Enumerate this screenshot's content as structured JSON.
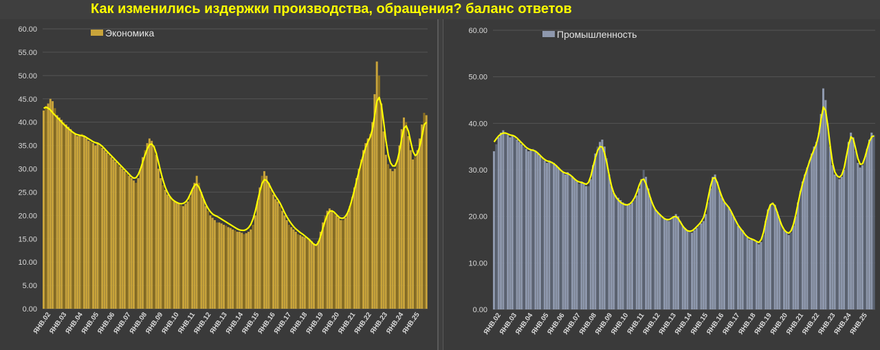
{
  "title": "Как изменились издержки производства, обращения? баланс ответов",
  "colors": {
    "background": "#3f3f3f",
    "grid": "#555555",
    "left_bar": "#c9a43a",
    "left_bar_dark": "#8a6f22",
    "right_bar": "#8e98ad",
    "right_bar_dark": "#5b6372",
    "trend_line": "#ffff00"
  },
  "chart_data": [
    {
      "type": "bar",
      "legend": "Экономика",
      "legend_position": "top-left",
      "grid": true,
      "ylim": [
        0,
        60
      ],
      "y_ticks": [
        "0.00",
        "5.00",
        "10.00",
        "15.00",
        "20.00",
        "25.00",
        "30.00",
        "35.00",
        "40.00",
        "45.00",
        "50.00",
        "55.00",
        "60.00"
      ],
      "x_ticks": [
        "ЯНВ.02",
        "ЯНВ.03",
        "ЯНВ.04",
        "ЯНВ.05",
        "ЯНВ.06",
        "ЯНВ.07",
        "ЯНВ.08",
        "ЯНВ.09",
        "ЯНВ.10",
        "ЯНВ.11",
        "ЯНВ.12",
        "ЯНВ.13",
        "ЯНВ.14",
        "ЯНВ.15",
        "ЯНВ.16",
        "ЯНВ.17",
        "ЯНВ.18",
        "ЯНВ.19",
        "ЯНВ.20",
        "ЯНВ.21",
        "ЯНВ.22",
        "ЯНВ.23",
        "ЯНВ.24",
        "ЯНВ.25"
      ],
      "series": [
        {
          "values": [
            42.5,
            43.5,
            44.0,
            45.0,
            44.5,
            43.0,
            41.5,
            41.0,
            40.5,
            40.0,
            39.5,
            39.0,
            38.5,
            38.0,
            37.5,
            37.0,
            37.2,
            37.5,
            37.0,
            36.5,
            36.0,
            35.8,
            35.5,
            35.0,
            35.5,
            35.0,
            34.5,
            34.0,
            33.5,
            33.0,
            32.5,
            32.0,
            31.5,
            31.0,
            30.5,
            30.0,
            29.5,
            29.0,
            28.5,
            28.0,
            27.5,
            27.0,
            28.0,
            30.0,
            32.5,
            34.0,
            35.5,
            36.5,
            36.0,
            35.0,
            33.0,
            30.0,
            28.0,
            26.5,
            25.5,
            24.5,
            24.0,
            23.5,
            23.0,
            22.8,
            22.5,
            22.2,
            22.0,
            22.5,
            23.0,
            24.0,
            25.5,
            27.0,
            28.5,
            27.0,
            25.0,
            23.5,
            22.0,
            21.0,
            20.0,
            19.5,
            19.0,
            18.5,
            18.5,
            18.3,
            18.0,
            17.8,
            17.5,
            17.3,
            17.0,
            16.8,
            16.5,
            16.5,
            16.3,
            16.0,
            16.2,
            16.5,
            17.0,
            18.0,
            20.0,
            23.0,
            26.0,
            28.5,
            29.5,
            28.5,
            27.0,
            25.5,
            24.5,
            23.5,
            23.0,
            22.0,
            21.0,
            20.0,
            19.0,
            18.0,
            17.5,
            17.0,
            16.5,
            16.0,
            15.8,
            15.5,
            15.3,
            15.0,
            14.8,
            14.5,
            14.0,
            13.5,
            14.5,
            16.5,
            18.5,
            20.0,
            21.0,
            21.5,
            21.0,
            20.5,
            20.0,
            19.5,
            19.0,
            19.0,
            19.5,
            20.5,
            22.0,
            24.0,
            26.0,
            28.0,
            30.0,
            32.0,
            34.0,
            35.5,
            36.5,
            37.5,
            40.0,
            46.0,
            53.0,
            50.0,
            44.0,
            38.0,
            33.0,
            31.0,
            30.0,
            29.5,
            30.0,
            32.0,
            35.0,
            38.5,
            41.0,
            40.0,
            37.0,
            34.0,
            32.0,
            32.5,
            34.0,
            36.5,
            39.5,
            42.0,
            41.5
          ]
        },
        {
          "name": "trend",
          "values": [
            43.0,
            43.2,
            43.0,
            42.6,
            42.0,
            41.5,
            41.0,
            40.5,
            40.0,
            39.5,
            39.0,
            38.6,
            38.2,
            37.8,
            37.5,
            37.3,
            37.2,
            37.1,
            37.0,
            36.7,
            36.4,
            36.1,
            35.8,
            35.6,
            35.5,
            35.2,
            34.8,
            34.3,
            33.8,
            33.3,
            32.8,
            32.3,
            31.8,
            31.3,
            30.8,
            30.3,
            29.8,
            29.3,
            28.8,
            28.3,
            28.0,
            28.1,
            28.8,
            30.0,
            31.5,
            33.0,
            34.3,
            35.2,
            35.3,
            34.7,
            33.3,
            31.3,
            29.3,
            27.5,
            26.0,
            24.9,
            24.1,
            23.5,
            23.1,
            22.8,
            22.6,
            22.5,
            22.6,
            22.9,
            23.5,
            24.5,
            25.6,
            26.5,
            26.7,
            26.0,
            24.8,
            23.5,
            22.4,
            21.5,
            20.8,
            20.3,
            20.0,
            19.8,
            19.5,
            19.2,
            18.9,
            18.6,
            18.3,
            18.0,
            17.7,
            17.4,
            17.1,
            16.9,
            16.8,
            16.8,
            17.0,
            17.4,
            18.1,
            19.3,
            21.0,
            23.1,
            25.2,
            26.9,
            27.7,
            27.5,
            26.8,
            25.8,
            24.9,
            24.1,
            23.4,
            22.6,
            21.6,
            20.6,
            19.7,
            18.9,
            18.2,
            17.6,
            17.1,
            16.7,
            16.3,
            16.0,
            15.6,
            15.2,
            14.8,
            14.3,
            13.8,
            13.6,
            14.2,
            15.6,
            17.3,
            18.9,
            20.2,
            20.9,
            21.0,
            20.7,
            20.2,
            19.7,
            19.4,
            19.4,
            19.8,
            20.6,
            21.9,
            23.6,
            25.5,
            27.5,
            29.4,
            31.3,
            33.1,
            34.6,
            35.8,
            36.8,
            38.5,
            41.5,
            44.5,
            45.3,
            43.5,
            40.0,
            36.0,
            33.0,
            31.3,
            30.6,
            30.6,
            31.7,
            33.8,
            36.5,
            38.7,
            39.2,
            38.0,
            35.8,
            33.7,
            32.8,
            33.3,
            34.8,
            37.0,
            39.5,
            40.0
          ]
        }
      ]
    },
    {
      "type": "bar",
      "legend": "Промышленность",
      "legend_position": "top-left",
      "grid": true,
      "ylim": [
        0,
        60
      ],
      "y_ticks": [
        "0.00",
        "10.00",
        "20.00",
        "30.00",
        "40.00",
        "50.00",
        "60.00"
      ],
      "x_ticks": [
        "ЯНВ.02",
        "ЯНВ.03",
        "ЯНВ.04",
        "ЯНВ.05",
        "ЯНВ.06",
        "ЯНВ.07",
        "ЯНВ.08",
        "ЯНВ.09",
        "ЯНВ.10",
        "ЯНВ.11",
        "ЯНВ.12",
        "ЯНВ.13",
        "ЯНВ.14",
        "ЯНВ.15",
        "ЯНВ.16",
        "ЯНВ.17",
        "ЯНВ.18",
        "ЯНВ.19",
        "ЯНВ.20",
        "ЯНВ.21",
        "ЯНВ.22",
        "ЯНВ.23",
        "ЯНВ.24",
        "ЯНВ.25"
      ],
      "series": [
        {
          "values": [
            34.0,
            35.5,
            37.0,
            38.0,
            38.5,
            38.0,
            37.5,
            37.0,
            37.5,
            37.0,
            36.5,
            36.0,
            35.5,
            35.0,
            34.5,
            34.0,
            34.2,
            34.5,
            34.0,
            33.5,
            33.0,
            32.5,
            32.0,
            31.5,
            32.0,
            31.8,
            31.5,
            31.0,
            30.5,
            30.0,
            29.5,
            29.0,
            29.5,
            29.0,
            28.5,
            28.0,
            27.5,
            27.0,
            27.5,
            27.0,
            26.5,
            26.5,
            28.0,
            31.0,
            33.5,
            35.0,
            36.0,
            36.5,
            35.0,
            32.5,
            29.0,
            26.5,
            25.0,
            24.5,
            24.0,
            23.5,
            23.0,
            22.8,
            22.5,
            22.5,
            23.0,
            23.5,
            24.5,
            26.0,
            28.0,
            30.0,
            28.5,
            26.0,
            24.0,
            22.5,
            21.5,
            21.0,
            20.5,
            20.0,
            19.5,
            19.2,
            19.0,
            19.5,
            20.0,
            20.5,
            20.0,
            19.0,
            18.0,
            17.5,
            17.0,
            16.8,
            16.5,
            17.0,
            17.5,
            18.0,
            18.5,
            19.0,
            20.5,
            23.0,
            26.0,
            28.5,
            29.0,
            27.5,
            25.5,
            24.0,
            23.0,
            22.5,
            22.0,
            21.0,
            20.0,
            19.0,
            18.0,
            17.5,
            17.0,
            16.0,
            15.5,
            15.0,
            15.0,
            14.8,
            14.5,
            14.0,
            14.5,
            16.0,
            19.0,
            21.5,
            22.5,
            23.0,
            22.5,
            21.0,
            19.5,
            18.0,
            17.0,
            16.5,
            16.0,
            16.5,
            18.0,
            20.0,
            23.0,
            25.5,
            27.5,
            29.0,
            30.5,
            32.0,
            33.5,
            35.0,
            36.0,
            38.0,
            42.0,
            47.5,
            45.0,
            40.0,
            35.0,
            31.0,
            29.0,
            28.5,
            28.0,
            28.5,
            30.0,
            33.0,
            36.0,
            38.0,
            37.0,
            34.0,
            31.5,
            30.5,
            31.0,
            32.5,
            34.5,
            36.5,
            38.0,
            37.5
          ]
        },
        {
          "name": "trend",
          "values": [
            36.0,
            36.7,
            37.3,
            37.7,
            37.9,
            37.9,
            37.7,
            37.5,
            37.4,
            37.2,
            36.8,
            36.3,
            35.8,
            35.3,
            34.8,
            34.5,
            34.3,
            34.2,
            34.0,
            33.6,
            33.1,
            32.6,
            32.2,
            31.9,
            31.8,
            31.6,
            31.3,
            30.9,
            30.4,
            29.9,
            29.5,
            29.3,
            29.2,
            28.9,
            28.5,
            28.0,
            27.6,
            27.4,
            27.3,
            27.1,
            26.9,
            27.3,
            28.6,
            30.7,
            32.6,
            34.2,
            35.0,
            34.9,
            33.6,
            31.4,
            28.8,
            26.5,
            25.0,
            24.1,
            23.5,
            23.0,
            22.7,
            22.5,
            22.5,
            22.7,
            23.2,
            24.0,
            25.2,
            26.7,
            27.8,
            28.0,
            27.0,
            25.4,
            23.8,
            22.5,
            21.5,
            20.9,
            20.4,
            19.9,
            19.5,
            19.3,
            19.3,
            19.6,
            19.9,
            20.0,
            19.5,
            18.7,
            17.9,
            17.3,
            16.9,
            16.8,
            16.9,
            17.3,
            17.8,
            18.3,
            18.9,
            19.8,
            21.6,
            24.1,
            26.5,
            28.2,
            28.3,
            27.1,
            25.5,
            24.1,
            23.1,
            22.5,
            21.9,
            21.0,
            20.0,
            19.0,
            18.1,
            17.4,
            16.8,
            16.1,
            15.6,
            15.3,
            15.1,
            14.9,
            14.6,
            14.4,
            15.0,
            16.6,
            19.0,
            21.2,
            22.5,
            22.8,
            22.2,
            20.8,
            19.3,
            18.0,
            17.1,
            16.6,
            16.4,
            16.9,
            18.3,
            20.3,
            22.8,
            25.1,
            27.1,
            28.8,
            30.3,
            31.8,
            33.2,
            34.4,
            35.6,
            37.6,
            40.9,
            43.5,
            42.7,
            39.2,
            35.0,
            31.5,
            29.5,
            28.7,
            28.4,
            28.9,
            30.4,
            32.9,
            35.5,
            37.1,
            36.6,
            34.6,
            32.4,
            31.2,
            31.3,
            32.6,
            34.4,
            36.1,
            37.1,
            37.3
          ]
        }
      ]
    }
  ]
}
